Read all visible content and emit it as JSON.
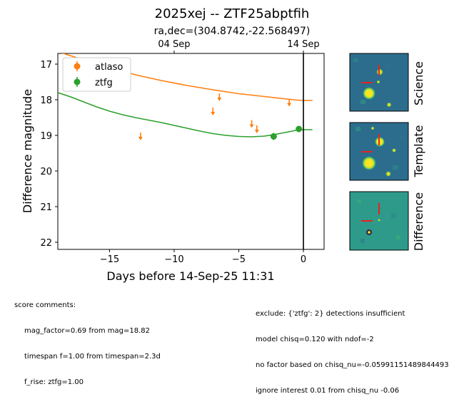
{
  "chart_data": {
    "type": "scatter",
    "title": "2025xej -- ZTF25abptfih",
    "subtitle": "ra,dec=(304.8742,-22.568497)",
    "xlabel": "Days before 14-Sep-25 11:31",
    "ylabel": "Difference magnitude",
    "xlim": [
      -19,
      1.6
    ],
    "ylim": [
      22.2,
      16.7
    ],
    "y_inverted": true,
    "grid": false,
    "legend_placement": "top-left",
    "x_ticks": [
      -15,
      -10,
      -5,
      0
    ],
    "x_tick_labels": [
      "−15",
      "−10",
      "−5",
      "0"
    ],
    "y_ticks": [
      17,
      18,
      19,
      20,
      21,
      22
    ],
    "top_axis_ticks": [
      {
        "x": -10,
        "label": "04 Sep"
      },
      {
        "x": 0,
        "label": "14 Sep"
      }
    ],
    "vline_x": 0,
    "series": [
      {
        "name": "atlaso",
        "color": "#ff7f0e",
        "upper_limits": [
          {
            "x": -12.6,
            "y": 19.0
          },
          {
            "x": -7.0,
            "y": 18.3
          },
          {
            "x": -6.5,
            "y": 17.9
          },
          {
            "x": -4.0,
            "y": 18.65
          },
          {
            "x": -3.6,
            "y": 18.8
          },
          {
            "x": -1.1,
            "y": 18.05
          }
        ],
        "model_curve": [
          [
            -19.0,
            16.65
          ],
          [
            -17.0,
            16.88
          ],
          [
            -15.0,
            17.1
          ],
          [
            -13.0,
            17.3
          ],
          [
            -11.0,
            17.46
          ],
          [
            -9.0,
            17.6
          ],
          [
            -7.0,
            17.72
          ],
          [
            -5.0,
            17.83
          ],
          [
            -3.0,
            17.91
          ],
          [
            -1.5,
            17.97
          ],
          [
            -0.5,
            18.01
          ],
          [
            0.0,
            18.02
          ],
          [
            0.7,
            18.02
          ]
        ]
      },
      {
        "name": "ztfg",
        "color": "#2ca02c",
        "points": [
          {
            "x": -2.3,
            "y": 19.03,
            "yerr": 0.1
          },
          {
            "x": -0.35,
            "y": 18.82,
            "yerr": 0.05
          }
        ],
        "model_curve": [
          [
            -19.0,
            17.8
          ],
          [
            -18.0,
            17.92
          ],
          [
            -17.0,
            18.06
          ],
          [
            -16.0,
            18.2
          ],
          [
            -15.0,
            18.32
          ],
          [
            -14.0,
            18.42
          ],
          [
            -13.0,
            18.5
          ],
          [
            -12.0,
            18.57
          ],
          [
            -11.0,
            18.64
          ],
          [
            -10.0,
            18.72
          ],
          [
            -9.0,
            18.8
          ],
          [
            -8.0,
            18.88
          ],
          [
            -7.0,
            18.95
          ],
          [
            -6.0,
            19.0
          ],
          [
            -5.0,
            19.03
          ],
          [
            -4.0,
            19.04
          ],
          [
            -3.0,
            19.02
          ],
          [
            -2.0,
            18.96
          ],
          [
            -1.0,
            18.89
          ],
          [
            -0.5,
            18.85
          ],
          [
            0.0,
            18.84
          ],
          [
            0.7,
            18.84
          ]
        ]
      }
    ]
  },
  "stamps": [
    {
      "label": "Science"
    },
    {
      "label": "Template"
    },
    {
      "label": "Difference"
    }
  ],
  "footer": {
    "left_heading": "score comments:",
    "left_lines": [
      "mag_factor=0.69 from mag=18.82",
      "timespan f=1.00 from timespan=2.3d",
      "f_rise: ztfg=1.00"
    ],
    "right_lines": [
      "exclude: {'ztfg': 2} detections insufficient",
      "model chisq=0.120 with ndof=-2",
      "no factor based on chisq_nu=-0.05991151489844493",
      "ignore interest 0.01 from chisq_nu -0.06"
    ]
  }
}
